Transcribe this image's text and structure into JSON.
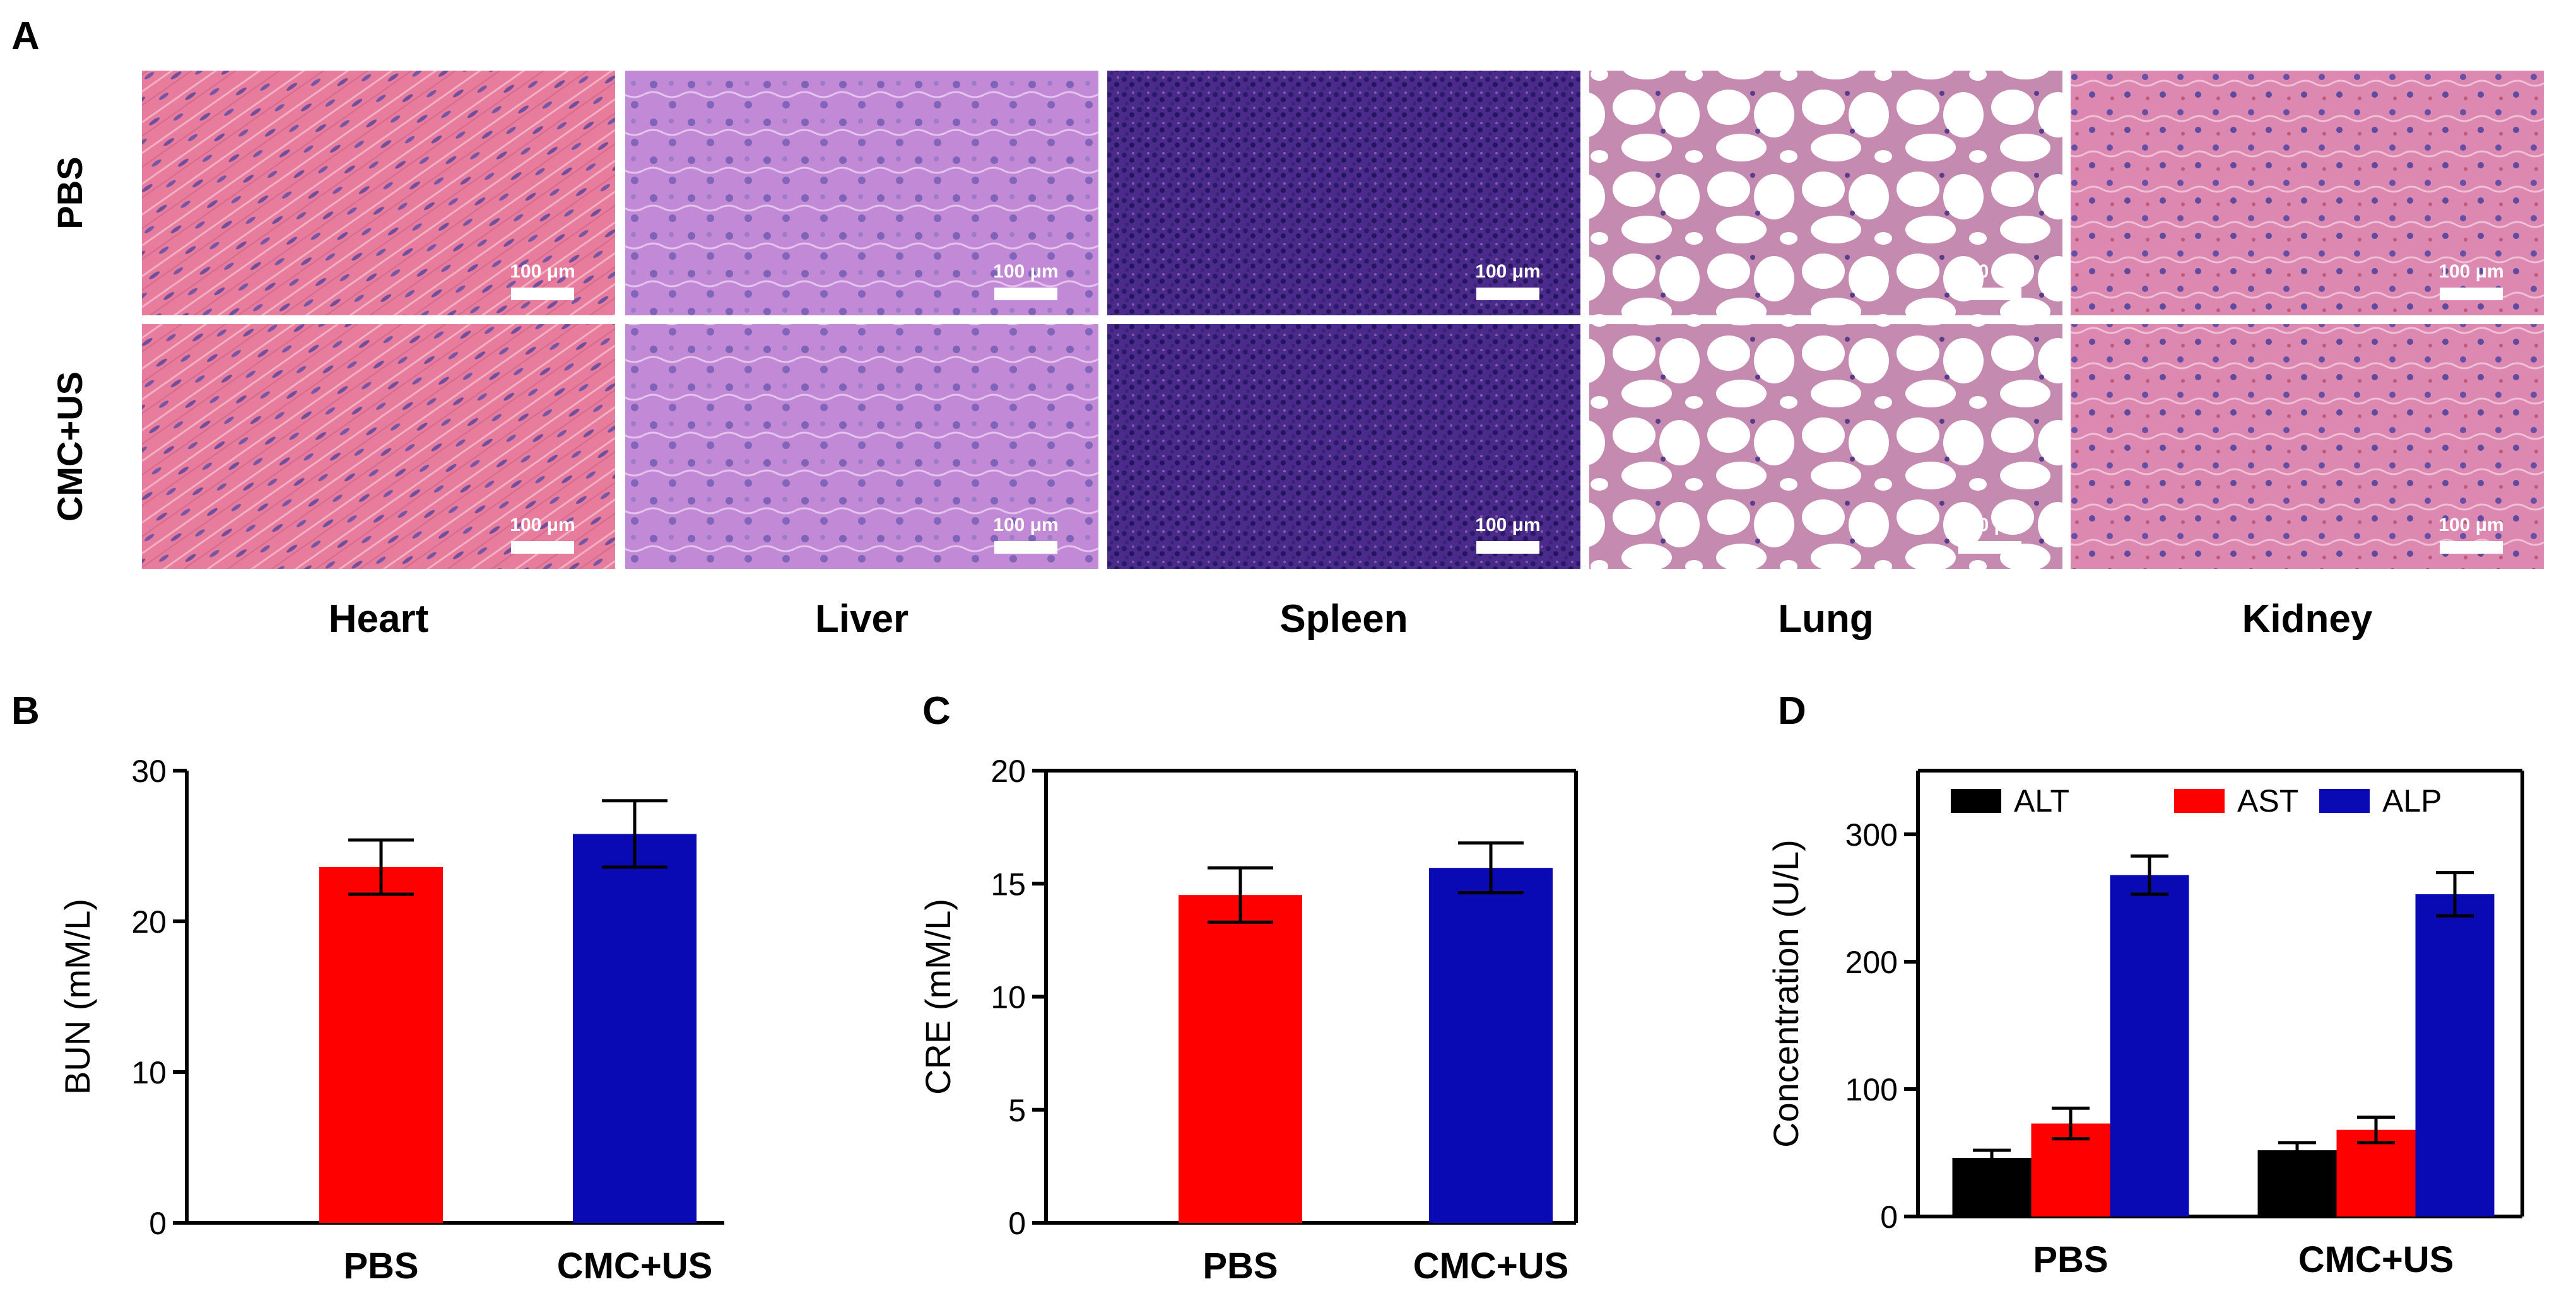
{
  "panel_letters": {
    "a": "A",
    "b": "B",
    "c": "C",
    "d": "D"
  },
  "histology": {
    "row_labels": [
      "PBS",
      "CMC+US"
    ],
    "organs": [
      "Heart",
      "Liver",
      "Spleen",
      "Lung",
      "Kidney"
    ],
    "scale_bar_label": "100 μm",
    "tissue_colors": {
      "Heart": "#e77c9c",
      "Liver": "#c28ad6",
      "Spleen": "#4a2a8a",
      "Lung": "#f3e4ee",
      "Kidney": "#dc88b0"
    }
  },
  "chart_data": [
    {
      "panel": "B",
      "type": "bar",
      "categories": [
        "PBS",
        "CMC+US"
      ],
      "values": [
        23.6,
        25.8
      ],
      "error": [
        1.8,
        2.2
      ],
      "bar_colors": [
        "#ff0000",
        "#0a0ab4"
      ],
      "ylabel": "BUN (mM/L)",
      "ylim": [
        0,
        30
      ],
      "yticks": [
        0,
        10,
        20,
        30
      ],
      "grid": false
    },
    {
      "panel": "C",
      "type": "bar",
      "categories": [
        "PBS",
        "CMC+US"
      ],
      "values": [
        14.5,
        15.7
      ],
      "error": [
        1.2,
        1.1
      ],
      "bar_colors": [
        "#ff0000",
        "#0a0ab4"
      ],
      "ylabel": "CRE (mM/L)",
      "ylim": [
        0,
        20
      ],
      "yticks": [
        0,
        5,
        10,
        15,
        20
      ],
      "grid": false
    },
    {
      "panel": "D",
      "type": "bar",
      "categories": [
        "PBS",
        "CMC+US"
      ],
      "series": [
        {
          "name": "ALT",
          "color": "#000000",
          "values": [
            46,
            52
          ],
          "error": [
            6,
            6
          ]
        },
        {
          "name": "AST",
          "color": "#ff0000",
          "values": [
            73,
            68
          ],
          "error": [
            12,
            10
          ]
        },
        {
          "name": "ALP",
          "color": "#0a0ab4",
          "values": [
            268,
            253
          ],
          "error": [
            15,
            17
          ]
        }
      ],
      "ylabel": "Concentration (U/L)",
      "ylim": [
        0,
        350
      ],
      "yticks": [
        0,
        100,
        200,
        300
      ],
      "legend": "top",
      "grid": false
    }
  ]
}
